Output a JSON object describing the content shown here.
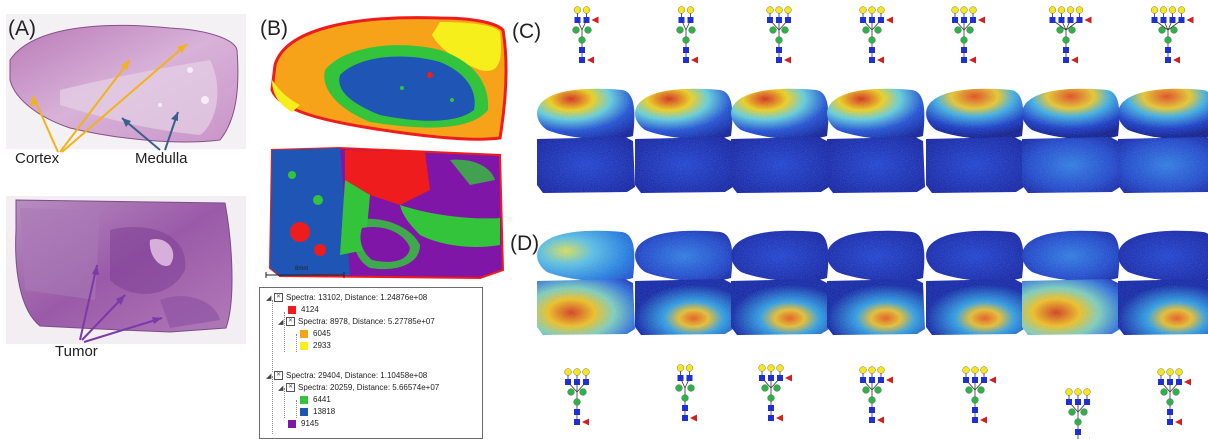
{
  "panels": {
    "a": "(A)",
    "b": "(B)",
    "c": "(C)",
    "d": "(D)"
  },
  "annotations": {
    "cortex": "Cortex",
    "medulla": "Medulla",
    "tumor": "Tumor",
    "scale": "8mm"
  },
  "colors": {
    "cortex_arrow": "#f2b21a",
    "medulla_arrow": "#3a5f8c",
    "tumor_arrow": "#7a3aa8",
    "tissue_pink": "#cf9fcf",
    "tissue_purple": "#a56cb0",
    "cluster_red": "#ee1c1c",
    "cluster_orange": "#f7a31a",
    "cluster_yellow": "#f7ef1b",
    "cluster_green": "#33c43b",
    "cluster_blue": "#1f56b5",
    "cluster_purple": "#7f16a8",
    "glycan_hexnac": "#1f2fd6",
    "glycan_mannose": "#2db24a",
    "glycan_galactose": "#f7e61b",
    "glycan_fucose": "#d21f1f"
  },
  "tree": [
    {
      "text": "Spectra: 13102, Distance: 1.24876e+08",
      "level": 0,
      "node": true
    },
    {
      "text": "4124",
      "level": 1,
      "swatch": "cluster_red"
    },
    {
      "text": "Spectra: 8978, Distance: 5.27785e+07",
      "level": 1,
      "node": true
    },
    {
      "text": "6045",
      "level": 2,
      "swatch": "cluster_orange"
    },
    {
      "text": "2933",
      "level": 2,
      "swatch": "cluster_yellow"
    },
    {
      "text": "Spectra: 29404, Distance: 1.10458e+08",
      "level": 0,
      "node": true
    },
    {
      "text": "Spectra: 20259, Distance: 5.66574e+07",
      "level": 1,
      "node": true
    },
    {
      "text": "6441",
      "level": 2,
      "swatch": "cluster_green"
    },
    {
      "text": "13818",
      "level": 2,
      "swatch": "cluster_blue"
    },
    {
      "text": "9145",
      "level": 1,
      "swatch": "cluster_purple"
    }
  ]
}
